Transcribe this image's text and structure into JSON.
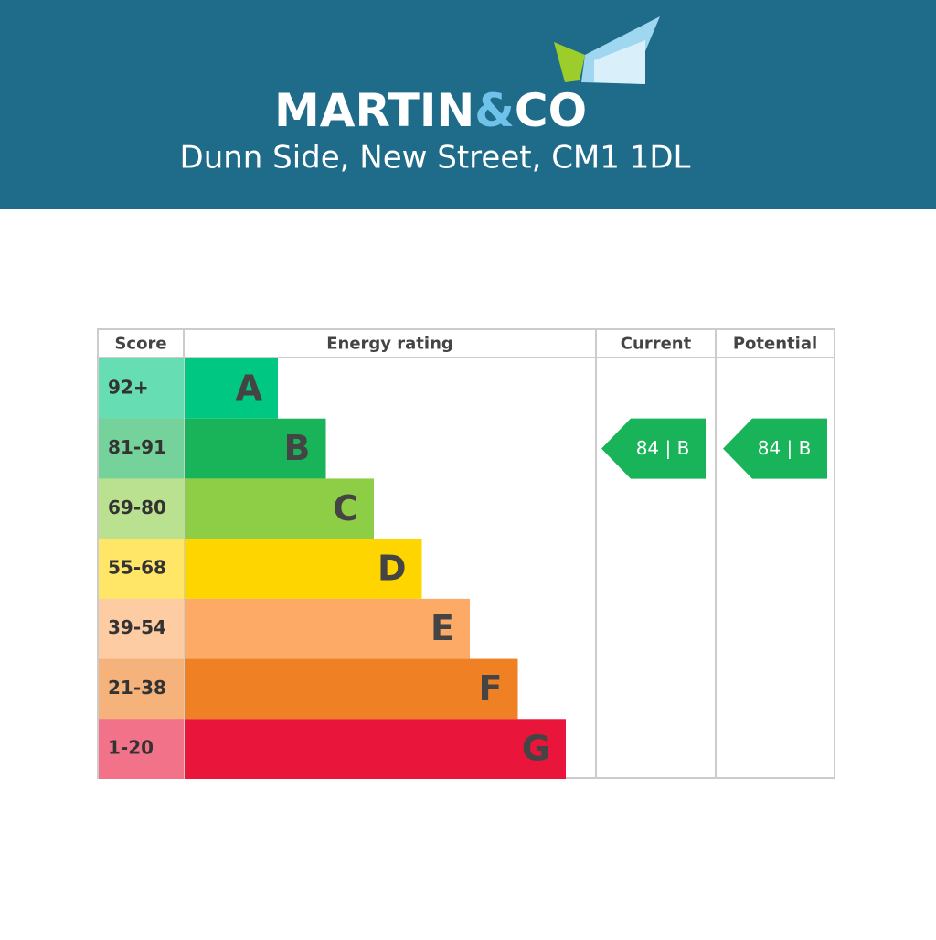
{
  "header": {
    "brand": "MARTIN",
    "brand_amp": "&",
    "brand_end": "CO",
    "address": "Dunn Side, New Street, CM1 1DL"
  },
  "epc": {
    "columns": [
      "Score",
      "Energy rating",
      "Current",
      "Potential"
    ],
    "bands": [
      {
        "score": "92+",
        "letter": "A",
        "color": "#00c781"
      },
      {
        "score": "81-91",
        "letter": "B",
        "color": "#19b459"
      },
      {
        "score": "69-80",
        "letter": "C",
        "color": "#8dce46"
      },
      {
        "score": "55-68",
        "letter": "D",
        "color": "#ffd500"
      },
      {
        "score": "39-54",
        "letter": "E",
        "color": "#fcaa65"
      },
      {
        "score": "21-38",
        "letter": "F",
        "color": "#ef8023"
      },
      {
        "score": "1-20",
        "letter": "G",
        "color": "#e9153b"
      }
    ],
    "current": "84 | B",
    "potential": "84 | B"
  }
}
